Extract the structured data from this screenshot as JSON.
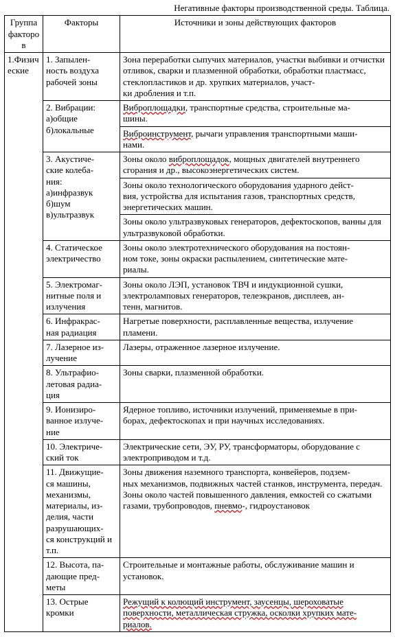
{
  "title": "Негативные факторы производственной среды. Таблица.",
  "table": {
    "columns": [
      "Группа факторов",
      "Факторы",
      "Источники и зоны действующих факторов"
    ],
    "group_label": "1.Физич\nеские",
    "rows": [
      {
        "factor": "1. Запылен-\nность воздуха рабочей зоны",
        "source": [
          {
            "t": "Зона переработки сыпучих материалов, участки выбивки и отчистки отливок, сварки и плазменной обработки, обработки пластмасс, стеклопластиков и др. хрупких материалов, участ-\nки дробления и т.п."
          }
        ],
        "rowspan": 1
      },
      {
        "factor": "2. Вибрации:\nа)общие\nб)локальные",
        "source": [
          {
            "t": "Виброплощадки",
            "s": true
          },
          {
            "t": ", транспортные средства, строительные ма-\nшины."
          }
        ],
        "rowspan": 2
      },
      {
        "source": [
          {
            "t": "Виброинструмент,",
            "s": true
          },
          {
            "t": " рычаги управления транспортными маши-\nнами."
          }
        ]
      },
      {
        "factor": "3. Акустиче-\nские колеба-\nния:\nа)инфразвук\nб)шум\nв)ультразвук",
        "source": [
          {
            "t": "Зоны около "
          },
          {
            "t": "виброплощадок",
            "s": true
          },
          {
            "t": ", мощных двигателей внутреннего сгорания и др., высокоэнергетических систем."
          }
        ],
        "rowspan": 3
      },
      {
        "source": [
          {
            "t": "Зоны около технологического оборудования ударного дейст-\nвия, устройства для испытания газов, транспортных средств, энергетических машин."
          }
        ]
      },
      {
        "source": [
          {
            "t": "Зоны около ультразвуковых генераторов, дефектоскопов, ванны для ультразвуковой обработки."
          }
        ]
      },
      {
        "factor": "4. Статическое электричество",
        "source": [
          {
            "t": "Зоны около электротехнического оборудования на постоян-\nном токе, зоны окраски распылением, синтетические мате-\nриалы."
          }
        ],
        "rowspan": 1
      },
      {
        "factor": "5. Электромаг-\nнитные поля и излучения",
        "source": [
          {
            "t": "Зоны около ЛЭП, установок ТВЧ и индукционной сушки, электроламповых генераторов, телеэкранов, дисплеев, ан-\nтенн, магнитов."
          }
        ],
        "rowspan": 1
      },
      {
        "factor": "6. Инфракрас-\nная радиация",
        "source": [
          {
            "t": "Нагретые поверхности, расплавленные вещества, излучение пламени."
          }
        ],
        "rowspan": 1
      },
      {
        "factor": "7. Лазерное из-\nлучение",
        "source": [
          {
            "t": "Лазеры, отраженное лазерное излучение."
          }
        ],
        "rowspan": 1
      },
      {
        "factor": "8. Ультрафио-\nлетовая радиа-\nция",
        "source": [
          {
            "t": "Зоны сварки, плазменной обработки."
          }
        ],
        "rowspan": 1
      },
      {
        "factor": "9. Ионизиро-\nванное излуче-\nние",
        "source": [
          {
            "t": "Ядерное топливо, источники излучений, применяемые в при-\nборах, дефектоскопах и при научных исследованиях."
          }
        ],
        "rowspan": 1
      },
      {
        "factor": "10. Электриче-\nский ток",
        "source": [
          {
            "t": "Электрические сети, ЭУ, РУ, трансформаторы, оборудование с электроприводом и т.д."
          }
        ],
        "rowspan": 1
      },
      {
        "factor": "11. Движущие-\nся машины, механизмы, материалы, из-\nделия, части разрушающих-\nся конструкций и т.п.",
        "source": [
          {
            "t": "Зоны движения наземного транспорта, конвейеров, подзем-\nных механизмов, подвижных частей станков, инструмента, передач. Зоны около частей повышенного давления, емкостей со сжатыми газами, трубопроводов, "
          },
          {
            "t": "пневмо",
            "s": true
          },
          {
            "t": "-, гидроустановок"
          }
        ],
        "rowspan": 1
      },
      {
        "factor": "12. Высота, па-\nдающие пред-\nметы",
        "source": [
          {
            "t": "Строительные и монтажные работы, обслуживание машин и установок."
          }
        ],
        "rowspan": 1
      },
      {
        "factor": "13. Острые кромки",
        "source": [
          {
            "t": "Режущий к колющий инструмент, заусенцы, шероховатые  поверхности, металлическая стружка, осколки хрупких мате-\nриалов.",
            "s": true
          }
        ],
        "rowspan": 1
      }
    ]
  }
}
